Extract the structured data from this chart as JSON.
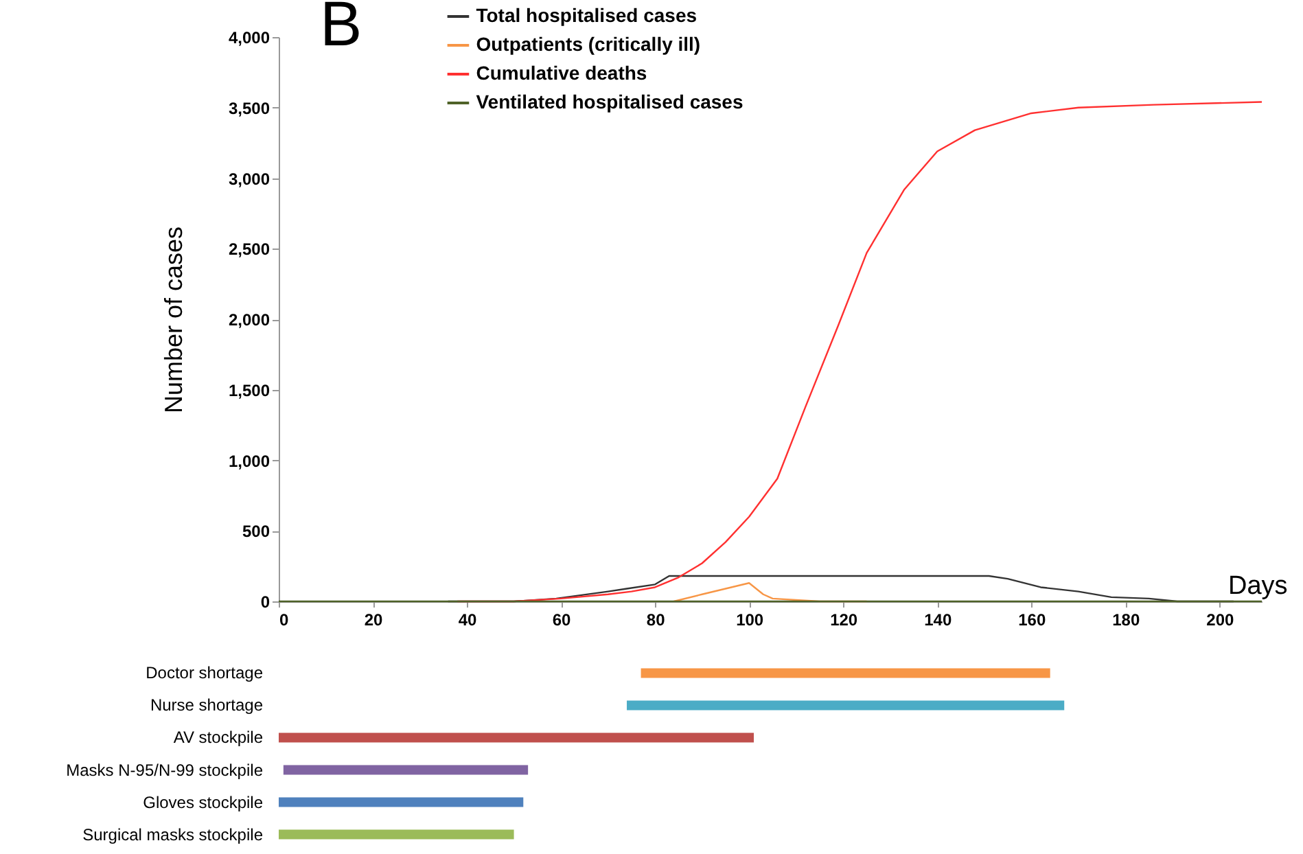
{
  "chart_data": [
    {
      "type": "line",
      "title": "B",
      "xlabel": "Days",
      "ylabel": "Number of cases",
      "xlim": [
        0,
        209
      ],
      "xticks": [
        0,
        20,
        40,
        60,
        80,
        100,
        120,
        140,
        160,
        180,
        200
      ],
      "ylim": [
        0,
        4000
      ],
      "yticks": [
        0,
        500,
        {
          "value": 1000,
          "label": "1,000"
        },
        {
          "value": 1500,
          "label": "1,500"
        },
        {
          "value": 2000,
          "label": "2,000"
        },
        {
          "value": 2500,
          "label": "2,500"
        },
        {
          "value": 3000,
          "label": "3,000"
        },
        {
          "value": 3500,
          "label": "3,500"
        },
        {
          "value": 4000,
          "label": "4,000"
        }
      ],
      "grid": false,
      "legend": "top",
      "marker": "none",
      "line_style": "solid",
      "series": [
        {
          "name": "Total hospitalised cases",
          "color": "#333333",
          "x": [
            36,
            50,
            59,
            70,
            74,
            80,
            83,
            100,
            120,
            140,
            151,
            155,
            162,
            170,
            177,
            185,
            191,
            197,
            203
          ],
          "values": [
            0,
            0,
            20,
            70,
            90,
            120,
            180,
            180,
            180,
            180,
            180,
            160,
            100,
            70,
            30,
            20,
            0,
            0,
            0
          ]
        },
        {
          "name": "Outpatients (critically ill)",
          "color": "#f79646",
          "x": [
            84,
            90,
            95,
            100,
            103,
            105,
            110,
            115,
            125
          ],
          "values": [
            0,
            50,
            90,
            130,
            50,
            20,
            10,
            0,
            0
          ]
        },
        {
          "name": "Cumulative deaths",
          "color": "#ff3030",
          "x": [
            38,
            50,
            60,
            70,
            75,
            80,
            85,
            90,
            95,
            100,
            106,
            112,
            119,
            125,
            133,
            140,
            148,
            160,
            170,
            186,
            209
          ],
          "values": [
            0,
            0,
            20,
            50,
            70,
            100,
            170,
            270,
            420,
            600,
            870,
            1380,
            1960,
            2470,
            2920,
            3190,
            3340,
            3460,
            3500,
            3520,
            3540
          ]
        },
        {
          "name": "Ventilated hospitalised cases",
          "color": "#4f6228",
          "x": [
            0,
            50,
            100,
            150,
            209
          ],
          "values": [
            0,
            0,
            0,
            0,
            0
          ]
        }
      ]
    },
    {
      "type": "bar",
      "orientation": "horizontal",
      "tick_labels": "y",
      "xlim": [
        0,
        209
      ],
      "categories": [
        "Doctor shortage",
        "Nurse shortage",
        "AV stockpile",
        "Masks N-95/N-99 stockpile",
        "Gloves stockpile",
        "Surgical masks stockpile"
      ],
      "base": [
        77,
        74,
        0,
        1,
        0,
        0
      ],
      "values": [
        87,
        93,
        101,
        52,
        52,
        50
      ],
      "colors": [
        "#f79646",
        "#4bacc6",
        "#c0504d",
        "#8064a2",
        "#4f81bd",
        "#9bbb59"
      ]
    }
  ]
}
